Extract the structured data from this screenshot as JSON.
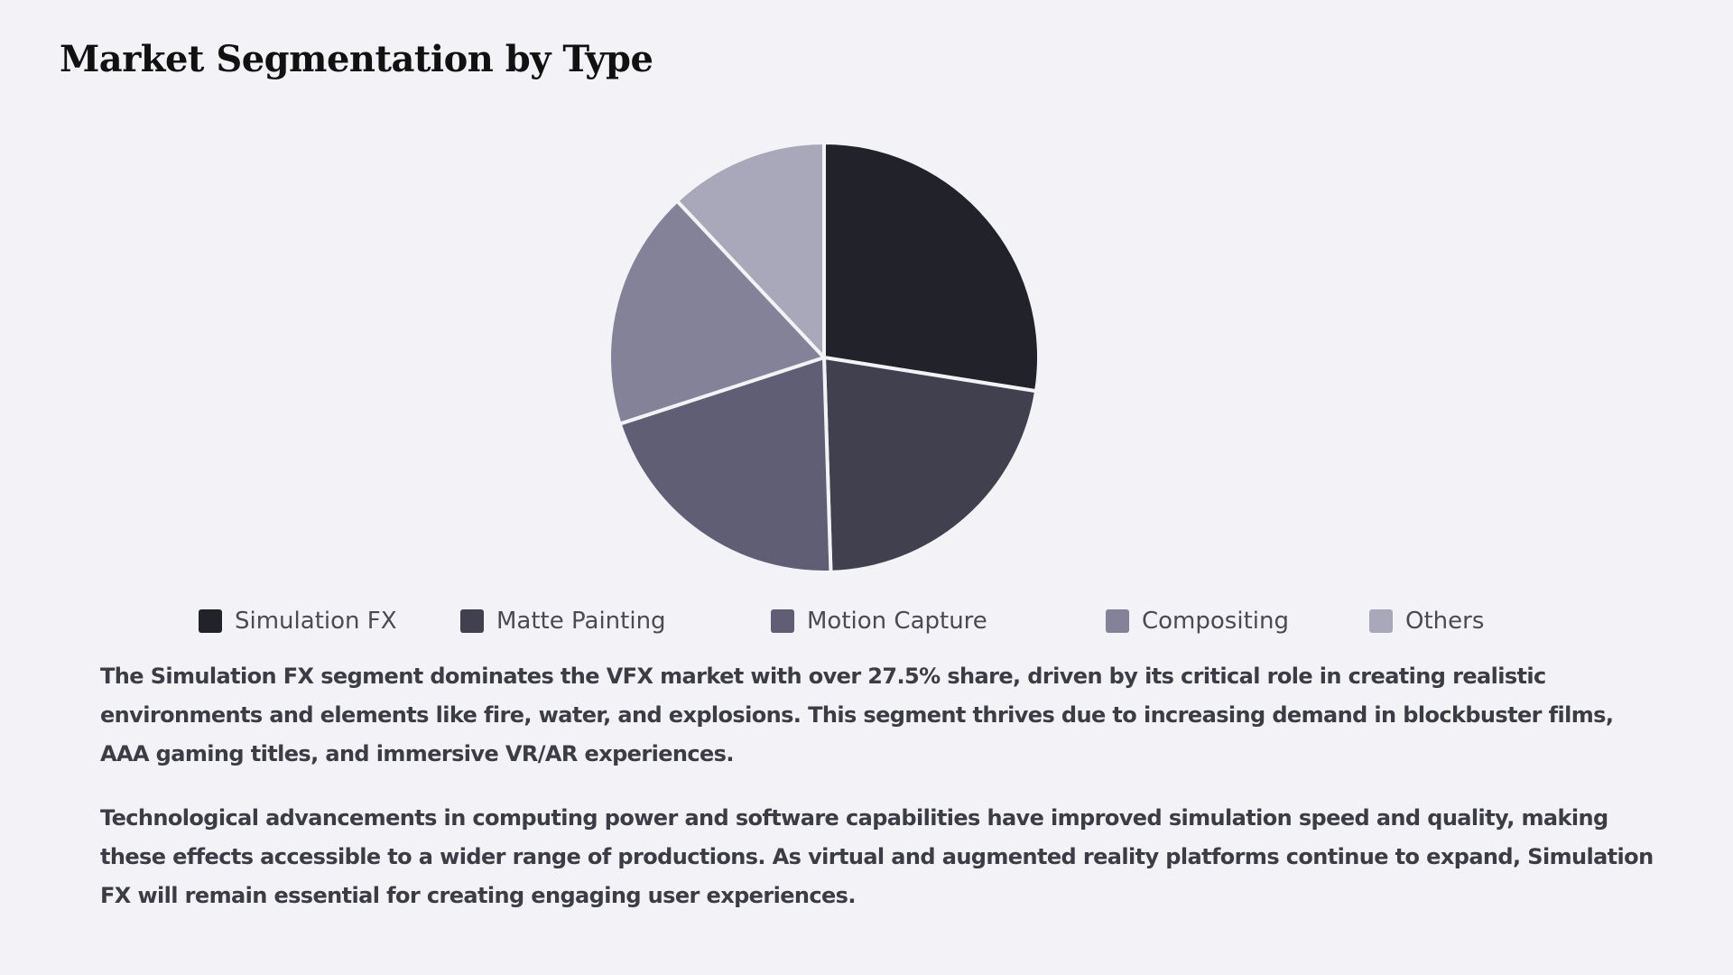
{
  "page": {
    "title": "Market Segmentation by Type"
  },
  "chart_data": {
    "type": "pie",
    "categories": [
      "Simulation FX",
      "Matte Painting",
      "Motion Capture",
      "Compositing",
      "Others"
    ],
    "values": [
      27.5,
      22,
      20.5,
      18,
      12
    ],
    "colors": [
      "#22222b",
      "#41404f",
      "#5f5e74",
      "#838298",
      "#a9a8ba"
    ],
    "title": "",
    "legend": "bottom",
    "start_angle": "12 o'clock",
    "direction": "clockwise"
  },
  "description": {
    "paragraphs": [
      "The Simulation FX segment dominates the VFX market with over 27.5% share, driven by its critical role in creating realistic environments and elements like fire, water, and explosions. This segment thrives due to increasing demand in blockbuster films, AAA gaming titles, and immersive VR/AR experiences.",
      "Technological advancements in computing power and software capabilities have improved simulation speed and quality, making these effects accessible to a wider range of productions. As virtual and augmented reality platforms continue to expand, Simulation FX will remain essential for creating engaging user experiences."
    ]
  }
}
